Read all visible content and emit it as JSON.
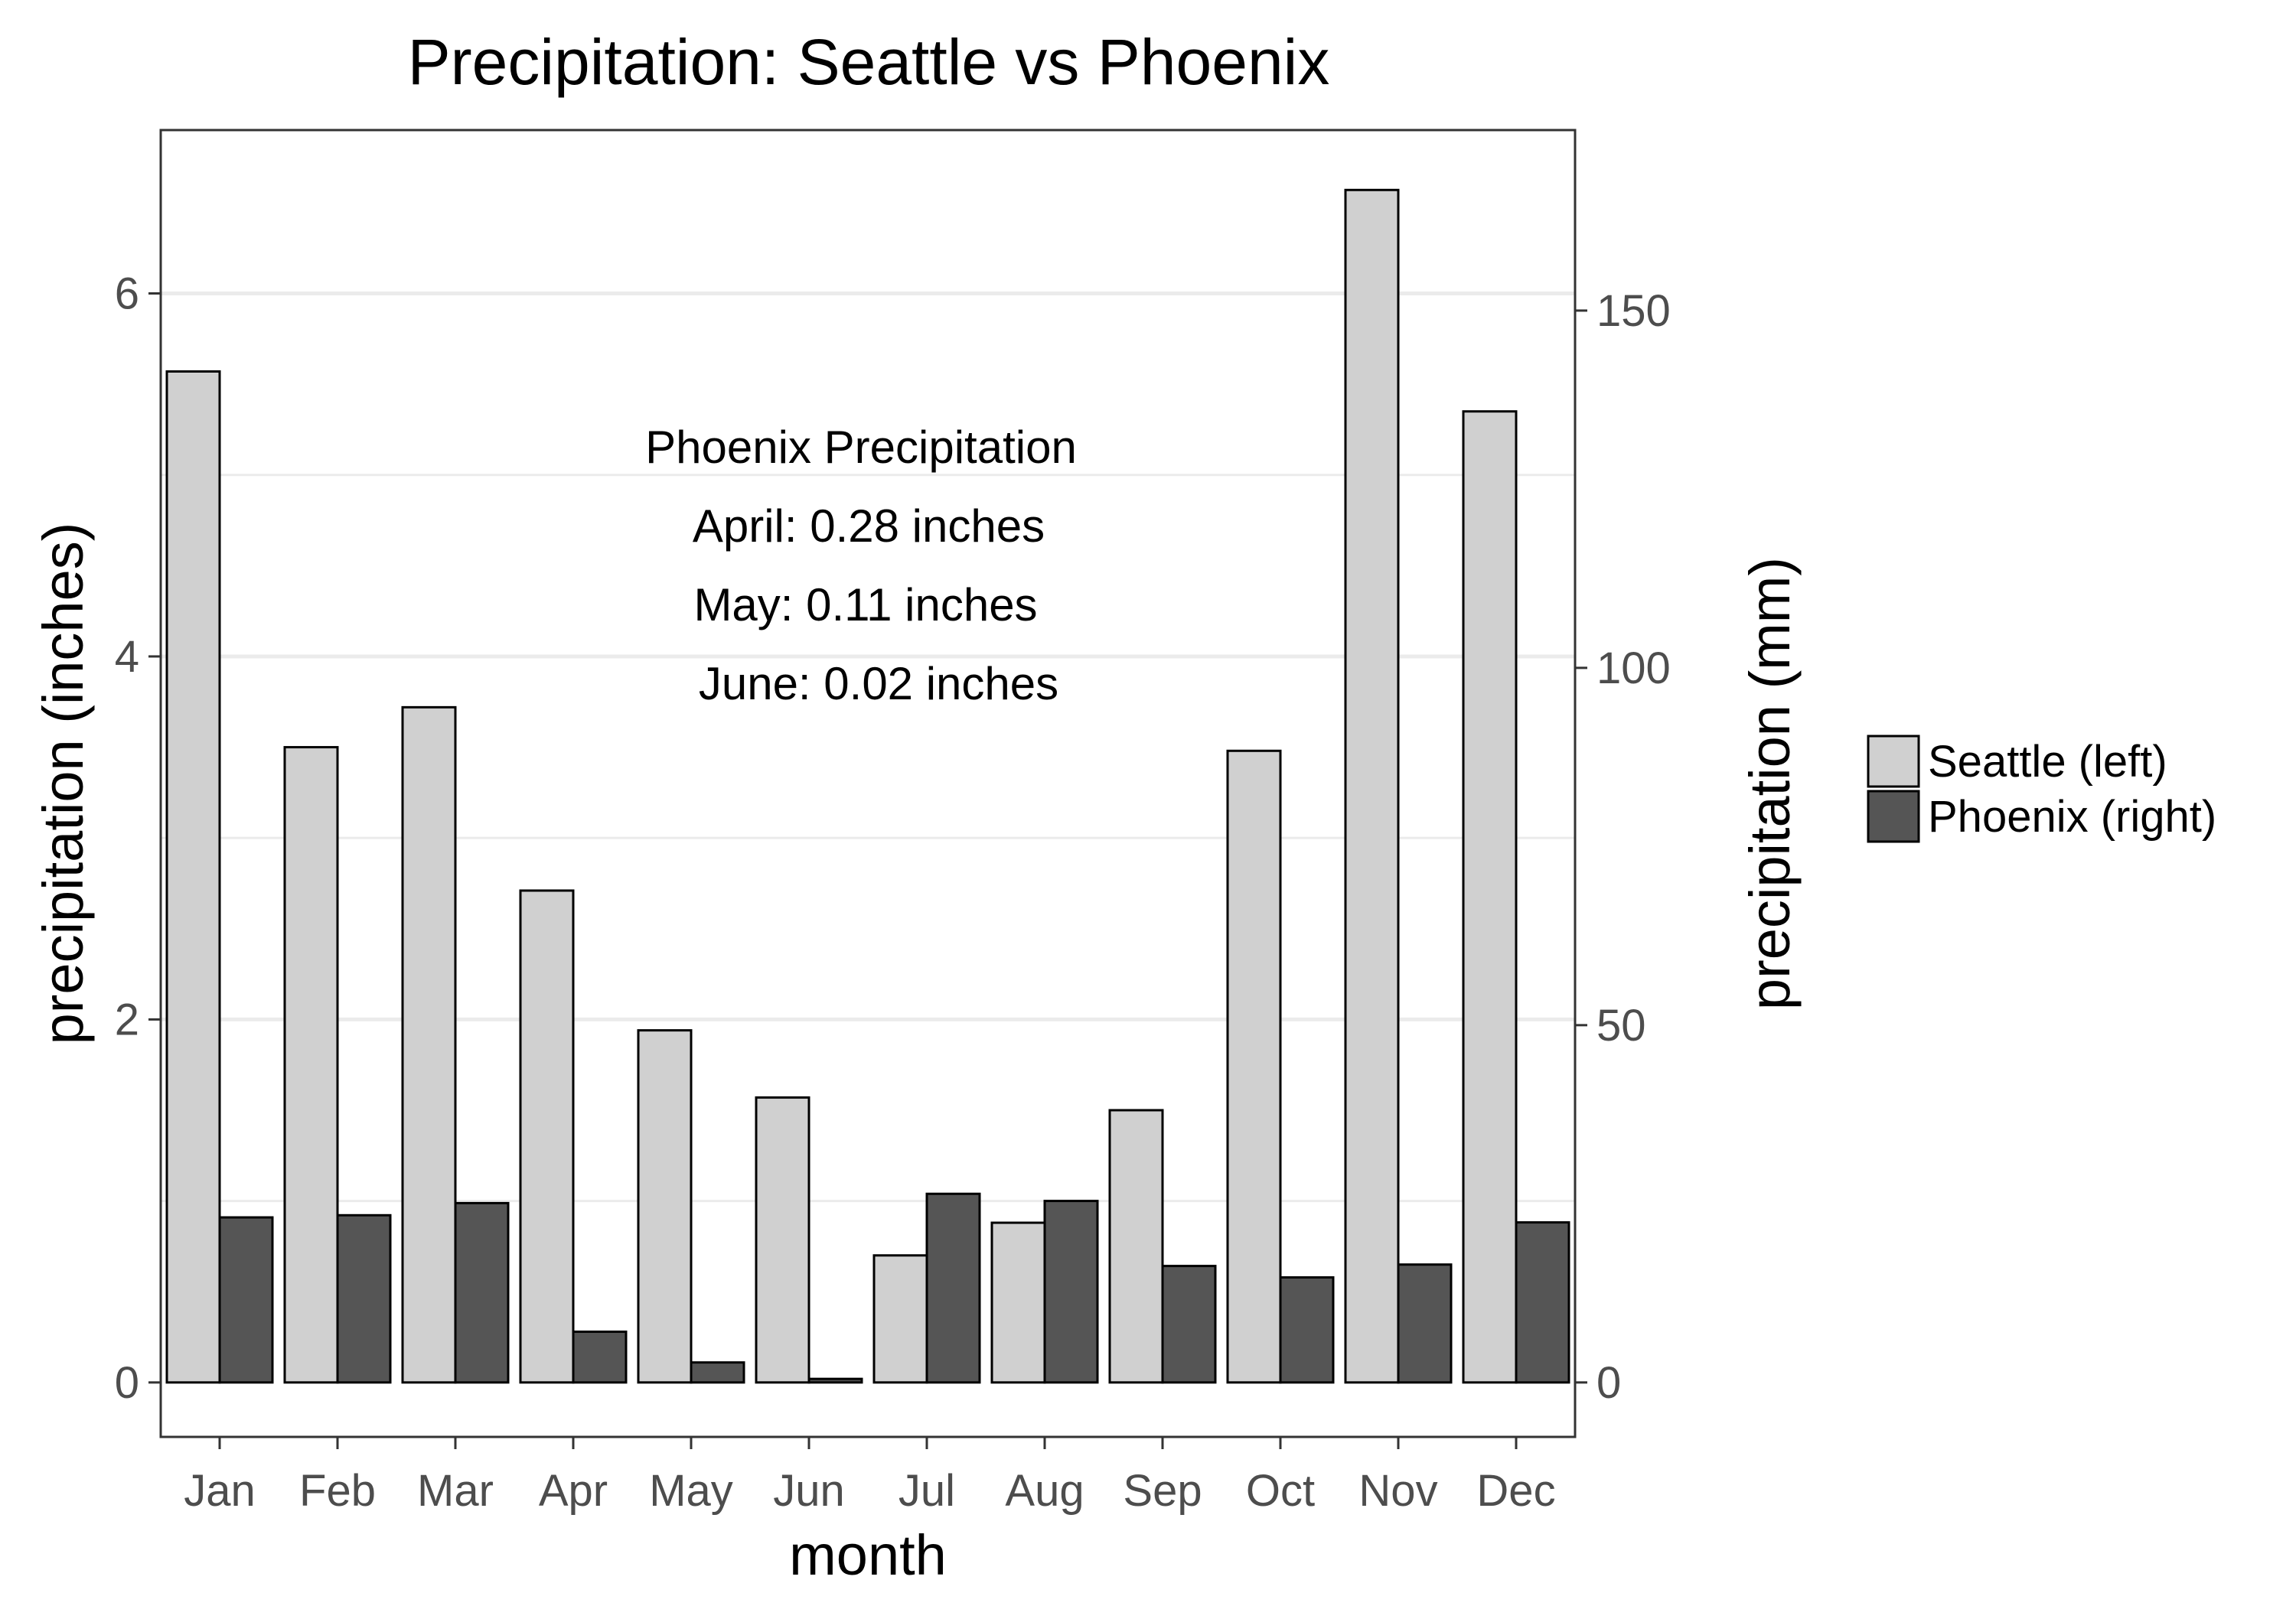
{
  "chart_data": {
    "type": "bar",
    "title": "Precipitation: Seattle vs Phoenix",
    "xlabel": "month",
    "ylabel": "precipitation (inches)",
    "ylabel_right": "precipitation (mm)",
    "categories": [
      "Jan",
      "Feb",
      "Mar",
      "Apr",
      "May",
      "Jun",
      "Jul",
      "Aug",
      "Sep",
      "Oct",
      "Nov",
      "Dec"
    ],
    "series": [
      {
        "name": "Seattle (left)",
        "axis": "left",
        "unit": "inches",
        "color": "#d0d0d0",
        "values": [
          5.57,
          3.5,
          3.72,
          2.71,
          1.94,
          1.57,
          0.7,
          0.88,
          1.5,
          3.48,
          6.57,
          5.35
        ]
      },
      {
        "name": "Phoenix (right)",
        "axis": "right",
        "unit": "mm",
        "color": "#555555",
        "values": [
          23.1,
          23.4,
          25.1,
          7.1,
          2.8,
          0.5,
          26.4,
          25.4,
          16.3,
          14.7,
          16.5,
          22.4
        ]
      }
    ],
    "ylim": [
      -0.3,
      6.9
    ],
    "yticks": [
      0,
      2,
      4,
      6
    ],
    "ylim_right": [
      -7.62,
      175.26
    ],
    "yticks_right": [
      0,
      50,
      100,
      150
    ],
    "grid": true,
    "legend_position": "right",
    "annotation": [
      "Phoenix Precipitation",
      "April: 0.28 inches",
      "May: 0.11 inches",
      "June: 0.02 inches"
    ]
  }
}
